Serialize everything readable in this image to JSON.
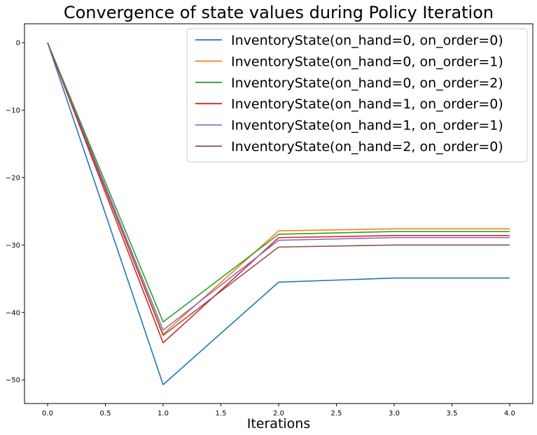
{
  "chart_data": {
    "type": "line",
    "title": "Convergence of state values during Policy Iteration",
    "xlabel": "Iterations",
    "ylabel": "",
    "x": [
      0,
      1,
      2,
      3,
      4
    ],
    "xlim": [
      -0.2,
      4.2
    ],
    "ylim": [
      -53.5,
      2.8
    ],
    "xticks": [
      0.0,
      0.5,
      1.0,
      1.5,
      2.0,
      2.5,
      3.0,
      3.5,
      4.0
    ],
    "xtick_labels": [
      "0.0",
      "0.5",
      "1.0",
      "1.5",
      "2.0",
      "2.5",
      "3.0",
      "3.5",
      "4.0"
    ],
    "yticks": [
      0,
      -10,
      -20,
      -30,
      -40,
      -50
    ],
    "ytick_labels": [
      "0",
      "−10",
      "−20",
      "−30",
      "−40",
      "−50"
    ],
    "grid": false,
    "legend_position": "top-right",
    "series": [
      {
        "name": "InventoryState(on_hand=0, on_order=0)",
        "color": "#1f77b4",
        "values": [
          0,
          -50.7,
          -35.5,
          -34.9,
          -34.9
        ]
      },
      {
        "name": "InventoryState(on_hand=0, on_order=1)",
        "color": "#ff7f0e",
        "values": [
          0,
          -43.2,
          -27.9,
          -27.6,
          -27.6
        ]
      },
      {
        "name": "InventoryState(on_hand=0, on_order=2)",
        "color": "#2ca02c",
        "values": [
          0,
          -41.4,
          -28.4,
          -28.0,
          -28.0
        ]
      },
      {
        "name": "InventoryState(on_hand=1, on_order=0)",
        "color": "#d62728",
        "values": [
          0,
          -44.5,
          -28.9,
          -28.6,
          -28.6
        ]
      },
      {
        "name": "InventoryState(on_hand=1, on_order=1)",
        "color": "#9467bd",
        "values": [
          0,
          -42.6,
          -29.3,
          -28.9,
          -28.9
        ]
      },
      {
        "name": "InventoryState(on_hand=2, on_order=0)",
        "color": "#8c564b",
        "values": [
          0,
          -43.4,
          -30.3,
          -30.0,
          -30.0
        ]
      }
    ]
  }
}
